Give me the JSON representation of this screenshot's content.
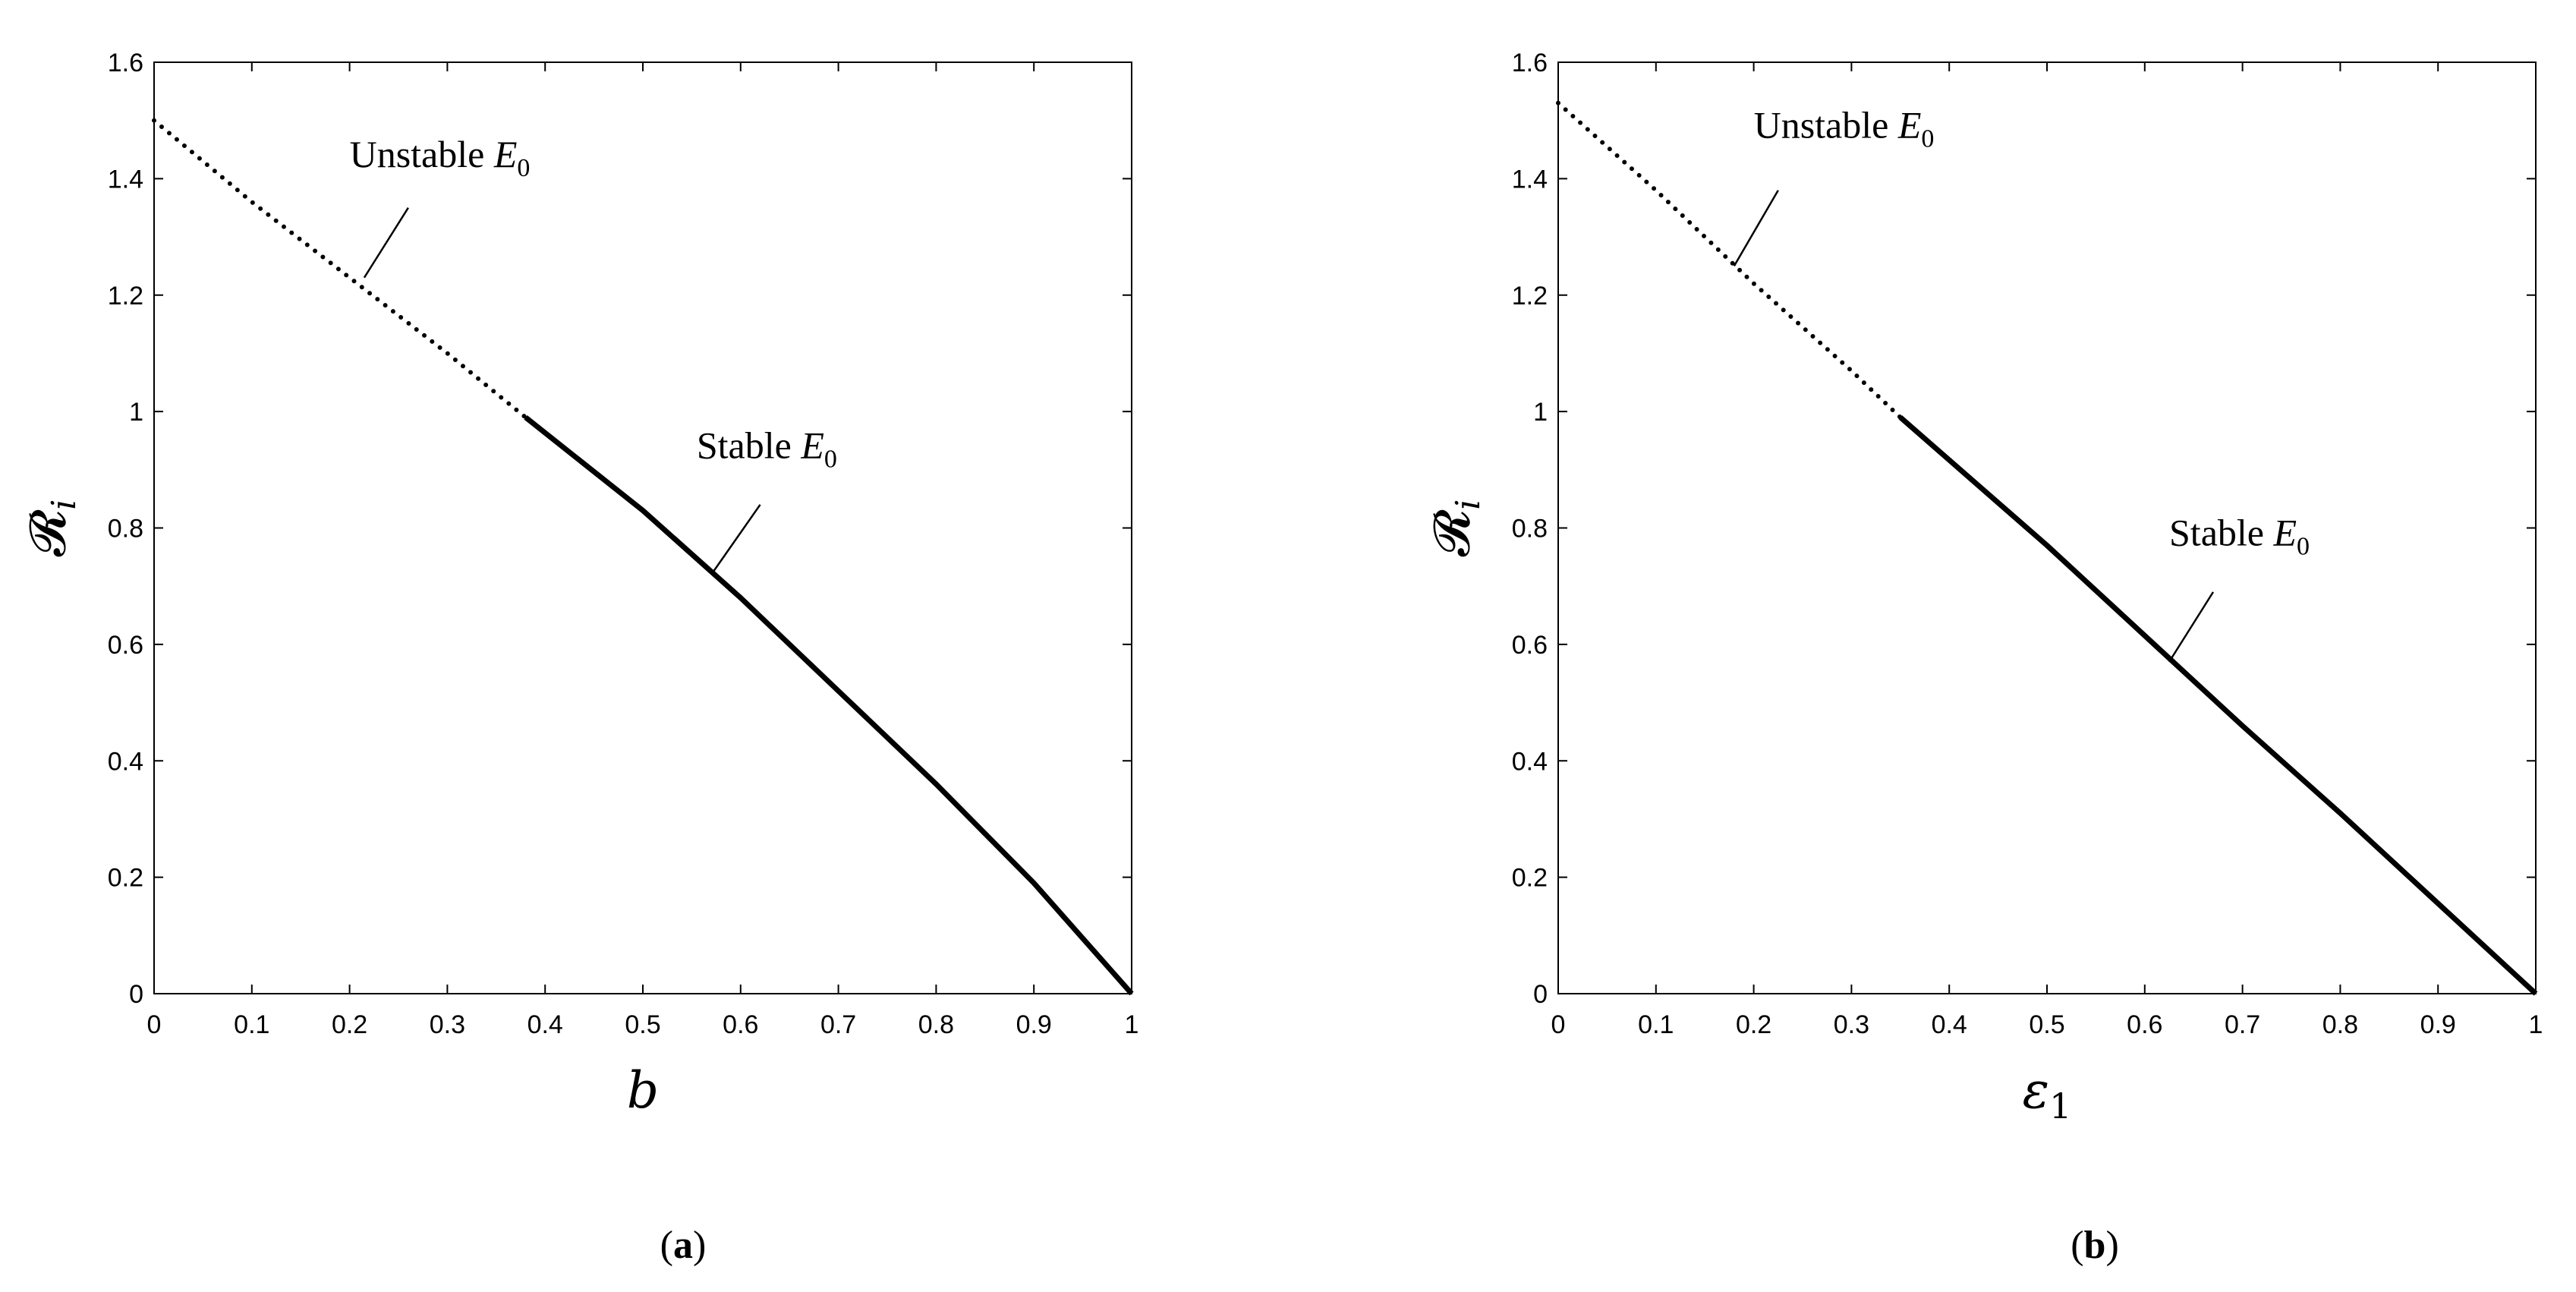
{
  "chart_data": [
    {
      "type": "line",
      "panel_label": "(a)",
      "panel_letter": "a",
      "xlabel": "b",
      "ylabel": "𝓡",
      "ylabel_sub": "i",
      "xlim": [
        0,
        1
      ],
      "ylim": [
        0,
        1.6
      ],
      "xticks": [
        "0",
        "0.1",
        "0.2",
        "0.3",
        "0.4",
        "0.5",
        "0.6",
        "0.7",
        "0.8",
        "0.9",
        "1"
      ],
      "yticks": [
        "0",
        "0.2",
        "0.4",
        "0.6",
        "0.8",
        "1",
        "1.2",
        "1.4",
        "1.6"
      ],
      "grid": false,
      "series": [
        {
          "style": "dotted",
          "x": [
            0,
            0.1,
            0.2,
            0.3,
            0.38
          ],
          "y": [
            1.5,
            1.36,
            1.23,
            1.1,
            0.99
          ]
        },
        {
          "style": "solid",
          "x": [
            0.38,
            0.5,
            0.6,
            0.7,
            0.8,
            0.9,
            1.0
          ],
          "y": [
            0.99,
            0.83,
            0.68,
            0.52,
            0.36,
            0.19,
            0.0
          ]
        }
      ],
      "annotations": [
        {
          "text": "Unstable ",
          "symbol": "E",
          "sub": "0",
          "x": 0.2,
          "y": 1.42,
          "leader_to": [
            0.215,
            1.23
          ],
          "leader_from": [
            0.26,
            1.35
          ]
        },
        {
          "text": "Stable ",
          "symbol": "E",
          "sub": "0",
          "x": 0.555,
          "y": 0.92,
          "leader_to": [
            0.57,
            0.72
          ],
          "leader_from": [
            0.62,
            0.84
          ]
        }
      ]
    },
    {
      "type": "line",
      "panel_label": "(b)",
      "panel_letter": "b",
      "xlabel": "ε",
      "xlabel_sub": "1",
      "ylabel": "𝓡",
      "ylabel_sub": "i",
      "xlim": [
        0,
        1
      ],
      "ylim": [
        0,
        1.6
      ],
      "xticks": [
        "0",
        "0.1",
        "0.2",
        "0.3",
        "0.4",
        "0.5",
        "0.6",
        "0.7",
        "0.8",
        "0.9",
        "1"
      ],
      "yticks": [
        "0",
        "0.2",
        "0.4",
        "0.6",
        "0.8",
        "1",
        "1.2",
        "1.4",
        "1.6"
      ],
      "grid": false,
      "series": [
        {
          "style": "dotted",
          "x": [
            0,
            0.1,
            0.2,
            0.3,
            0.35
          ],
          "y": [
            1.53,
            1.38,
            1.22,
            1.07,
            0.99
          ]
        },
        {
          "style": "solid",
          "x": [
            0.35,
            0.5,
            0.6,
            0.7,
            0.8,
            0.9,
            1.0
          ],
          "y": [
            0.99,
            0.77,
            0.615,
            0.46,
            0.31,
            0.155,
            0.0
          ]
        }
      ],
      "annotations": [
        {
          "text": "Unstable ",
          "symbol": "E",
          "sub": "0",
          "x": 0.2,
          "y": 1.47,
          "leader_to": [
            0.18,
            1.25
          ],
          "leader_from": [
            0.225,
            1.38
          ]
        },
        {
          "text": "Stable ",
          "symbol": "E",
          "sub": "0",
          "x": 0.625,
          "y": 0.77,
          "leader_to": [
            0.625,
            0.57
          ],
          "leader_from": [
            0.67,
            0.69
          ]
        }
      ]
    }
  ]
}
